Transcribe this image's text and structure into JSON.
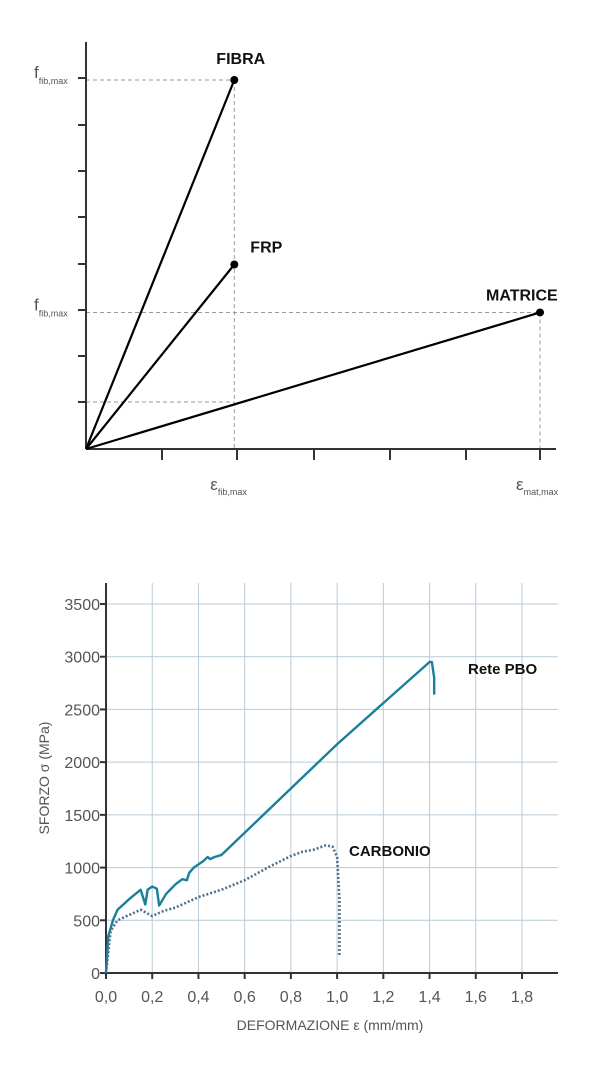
{
  "chart_data": [
    {
      "type": "line",
      "description_free": true,
      "series": [
        {
          "name": "FIBRA",
          "x": [
            0,
            0.98
          ],
          "y": [
            0,
            1.0
          ]
        },
        {
          "name": "FRP",
          "x": [
            0,
            0.98
          ],
          "y": [
            0,
            0.5
          ]
        },
        {
          "name": "MATRICE",
          "x": [
            0,
            3.0
          ],
          "y": [
            0,
            0.37
          ]
        }
      ],
      "y_markers": [
        {
          "symbol": "f",
          "sub": "fib,max",
          "value": 1.0
        },
        {
          "symbol": "f",
          "sub": "fib,max",
          "value": 0.37
        }
      ],
      "x_markers": [
        {
          "symbol": "ε",
          "sub": "fib,max",
          "value": 0.98
        },
        {
          "symbol": "ε",
          "sub": "mat,max",
          "value": 3.0
        }
      ],
      "xlim": [
        0,
        3.1
      ],
      "ylim": [
        0,
        1.1
      ],
      "grid": false
    },
    {
      "type": "line",
      "xlabel": "DEFORMAZIONE  ε (mm/mm)",
      "ylabel": "SFORZO σ (MPa)",
      "xlim": [
        0,
        1.95
      ],
      "ylim": [
        0,
        3700
      ],
      "x_ticks": [
        "0,0",
        "0,2",
        "0,4",
        "0,6",
        "0,8",
        "1,0",
        "1,2",
        "1,4",
        "1,6",
        "1,8"
      ],
      "x_tick_values": [
        0,
        0.2,
        0.4,
        0.6,
        0.8,
        1.0,
        1.2,
        1.4,
        1.6,
        1.8
      ],
      "y_ticks": [
        "0",
        "500",
        "1000",
        "1500",
        "2000",
        "2500",
        "3000",
        "3500"
      ],
      "y_tick_values": [
        0,
        500,
        1000,
        1500,
        2000,
        2500,
        3000,
        3500
      ],
      "grid": true,
      "series": [
        {
          "name": "Rete PBO",
          "color": "#1a7f99",
          "style": "solid",
          "x": [
            0,
            0.01,
            0.03,
            0.05,
            0.1,
            0.15,
            0.17,
            0.18,
            0.2,
            0.22,
            0.23,
            0.26,
            0.3,
            0.33,
            0.35,
            0.36,
            0.38,
            0.42,
            0.44,
            0.45,
            0.47,
            0.5,
            1.0,
            1.4,
            1.41,
            1.42,
            1.42
          ],
          "y": [
            0,
            350,
            500,
            600,
            700,
            790,
            650,
            790,
            820,
            800,
            640,
            750,
            840,
            890,
            880,
            950,
            1000,
            1060,
            1100,
            1080,
            1100,
            1120,
            2170,
            2950,
            2950,
            2800,
            2640
          ]
        },
        {
          "name": "CARBONIO",
          "color": "#4f7190",
          "style": "dotted",
          "x": [
            0,
            0.02,
            0.05,
            0.1,
            0.15,
            0.2,
            0.25,
            0.3,
            0.4,
            0.5,
            0.6,
            0.7,
            0.8,
            0.85,
            0.9,
            0.95,
            0.98,
            1.0,
            1.01,
            1.01
          ],
          "y": [
            0,
            400,
            500,
            550,
            600,
            540,
            590,
            620,
            720,
            790,
            880,
            1000,
            1110,
            1150,
            1170,
            1210,
            1200,
            1100,
            700,
            160
          ]
        }
      ]
    }
  ]
}
